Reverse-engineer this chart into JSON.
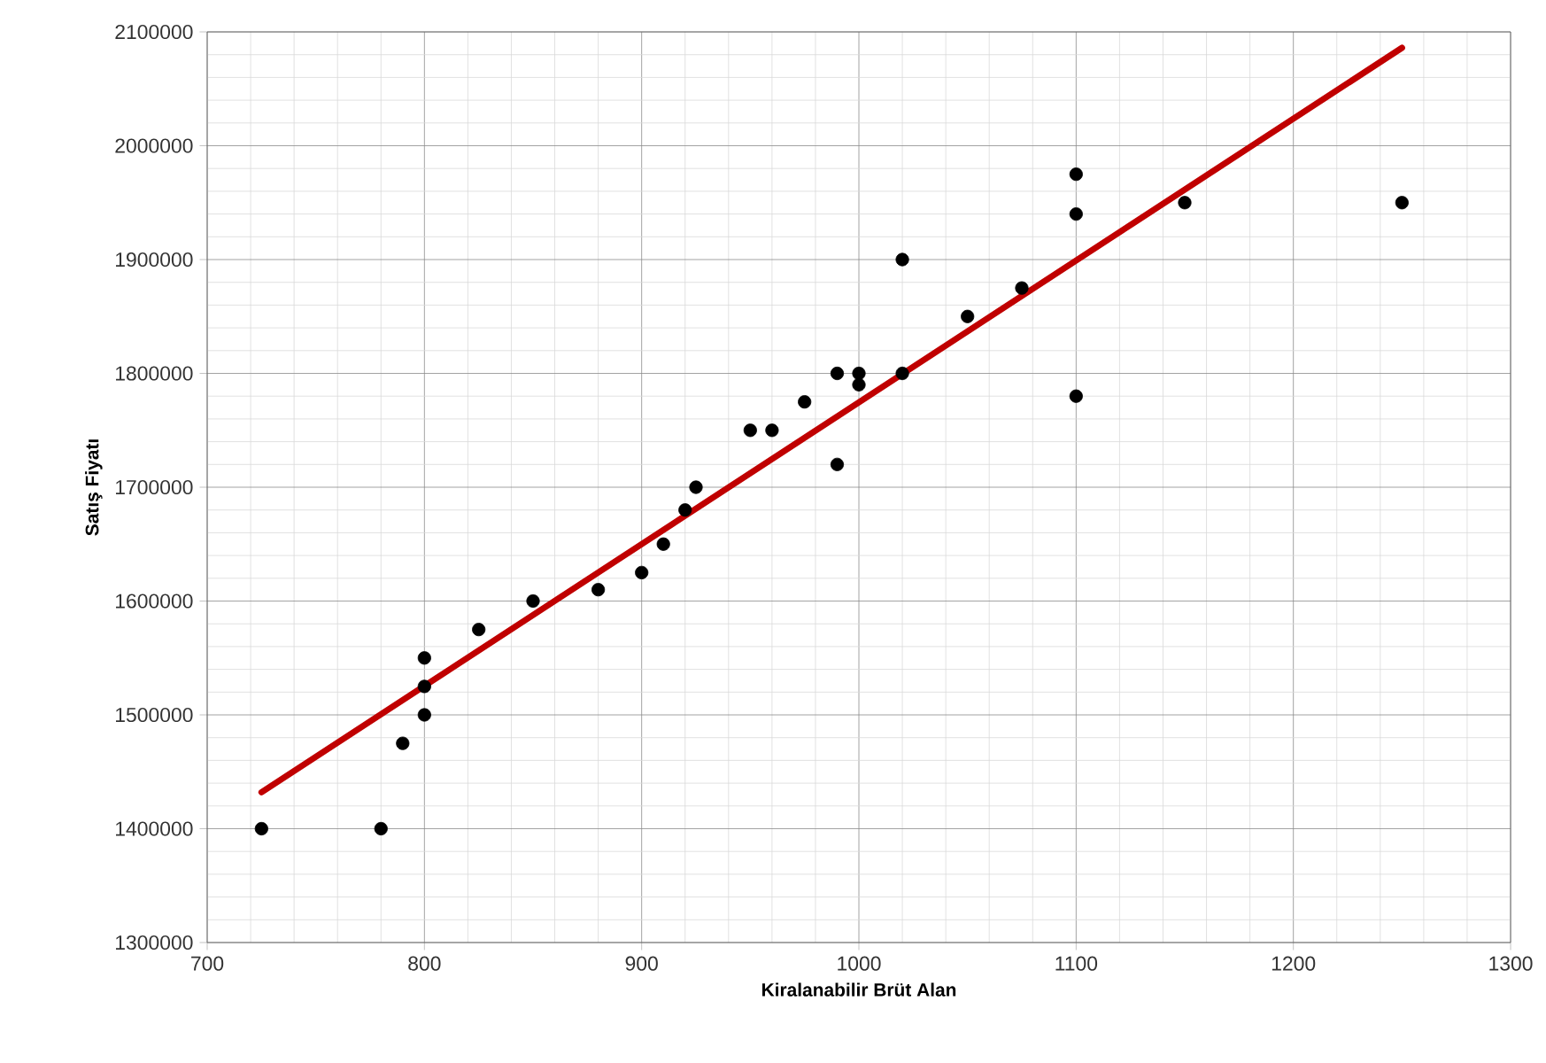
{
  "chart_data": {
    "type": "scatter",
    "xlabel": "Kiralanabilir Brüt Alan",
    "ylabel": "Satış Fiyatı",
    "xlim": [
      700,
      1300
    ],
    "xticks": [
      700,
      800,
      900,
      1000,
      1100,
      1200,
      1300
    ],
    "ylim": [
      1300000,
      2100000
    ],
    "yticks": [
      1300000,
      1400000,
      1500000,
      1600000,
      1700000,
      1800000,
      1900000,
      2000000,
      2100000
    ],
    "grid": true,
    "series": [
      {
        "color": "#000000",
        "marker": "circle",
        "x": [
          725,
          780,
          790,
          800,
          800,
          800,
          825,
          850,
          880,
          900,
          910,
          920,
          925,
          950,
          960,
          975,
          990,
          990,
          1000,
          1000,
          1020,
          1020,
          1050,
          1075,
          1100,
          1100,
          1100,
          1150,
          1250
        ],
        "values": [
          1400000,
          1400000,
          1475000,
          1500000,
          1525000,
          1550000,
          1575000,
          1600000,
          1610000,
          1625000,
          1650000,
          1680000,
          1700000,
          1750000,
          1750000,
          1775000,
          1720000,
          1800000,
          1800000,
          1790000,
          1900000,
          1800000,
          1850000,
          1875000,
          1975000,
          1940000,
          1780000,
          1950000,
          1950000
        ]
      },
      {
        "type": "line",
        "color": "#c00000",
        "marker": "none",
        "line_style": "solid",
        "x": [
          725,
          1250
        ],
        "values": [
          1432000,
          2086000
        ]
      }
    ]
  }
}
